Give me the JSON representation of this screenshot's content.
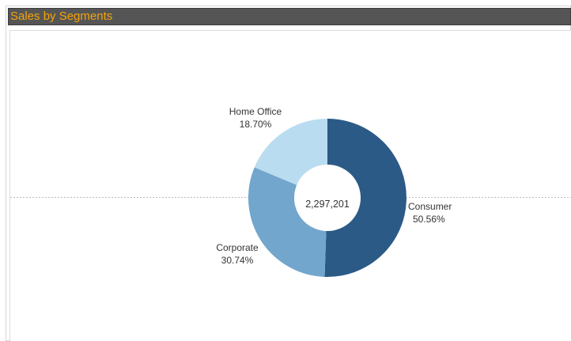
{
  "title": "Sales by Segments",
  "colors": {
    "title_text": "#f5a30a",
    "title_bg": "#555555",
    "reference_line": "#bbbbbb"
  },
  "chart_data": {
    "type": "pie",
    "donut": true,
    "center_label": "2,297,201",
    "slices": [
      {
        "label": "Consumer",
        "value": 50.56,
        "value_label": "50.56%",
        "color": "#2b5a87"
      },
      {
        "label": "Corporate",
        "value": 30.74,
        "value_label": "30.74%",
        "color": "#72a6cc"
      },
      {
        "label": "Home Office",
        "value": 18.7,
        "value_label": "18.70%",
        "color": "#b9dcf0"
      }
    ]
  }
}
